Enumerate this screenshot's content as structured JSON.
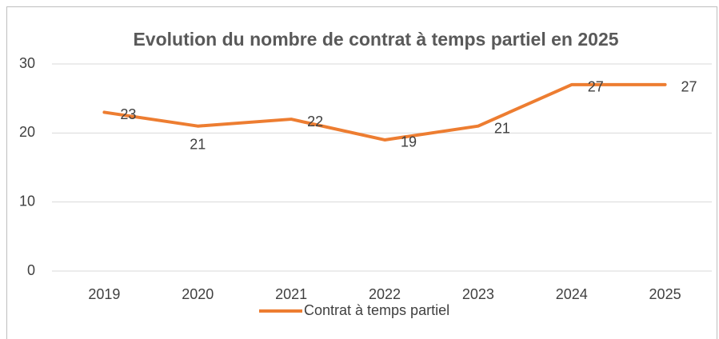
{
  "chart_data": {
    "type": "line",
    "title": "Evolution du nombre de contrat à temps partiel en 2025",
    "categories": [
      "2019",
      "2020",
      "2021",
      "2022",
      "2023",
      "2024",
      "2025"
    ],
    "series": [
      {
        "name": "Contrat à temps partiel",
        "color": "#ed7d31",
        "values": [
          23,
          21,
          22,
          19,
          21,
          27,
          27
        ]
      }
    ],
    "ylim": [
      0,
      30
    ],
    "yticks": [
      0,
      10,
      20,
      30
    ],
    "grid": true,
    "legend": "bottom"
  }
}
